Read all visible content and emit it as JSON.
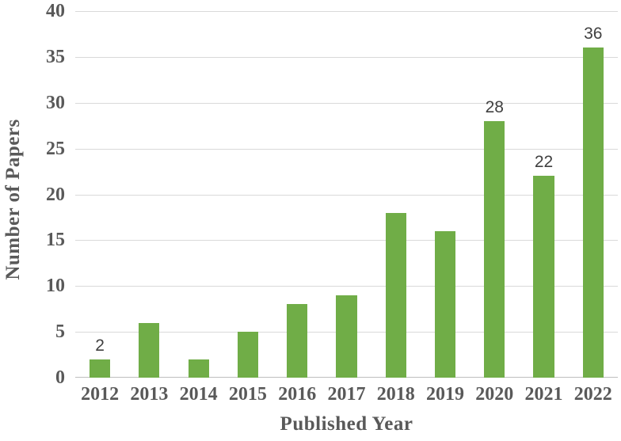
{
  "chart_data": {
    "type": "bar",
    "title": "",
    "xlabel": "Published Year",
    "ylabel": "Number of Papers",
    "categories": [
      "2012",
      "2013",
      "2014",
      "2015",
      "2016",
      "2017",
      "2018",
      "2019",
      "2020",
      "2021",
      "2022"
    ],
    "values": [
      2,
      6,
      2,
      5,
      8,
      9,
      18,
      16,
      28,
      22,
      36
    ],
    "data_labels": [
      "2",
      null,
      null,
      null,
      null,
      null,
      null,
      null,
      "28",
      "22",
      "36"
    ],
    "ylim": [
      0,
      40
    ],
    "yticks": [
      0,
      5,
      10,
      15,
      20,
      25,
      30,
      35,
      40
    ],
    "grid": true,
    "legend": "none",
    "colors": {
      "bar": "#70AD47",
      "gridline": "#d9d9d9",
      "axis_line": "#bfbfbf",
      "tick_label": "#595959",
      "data_label": "#404040",
      "background": "#ffffff"
    }
  }
}
